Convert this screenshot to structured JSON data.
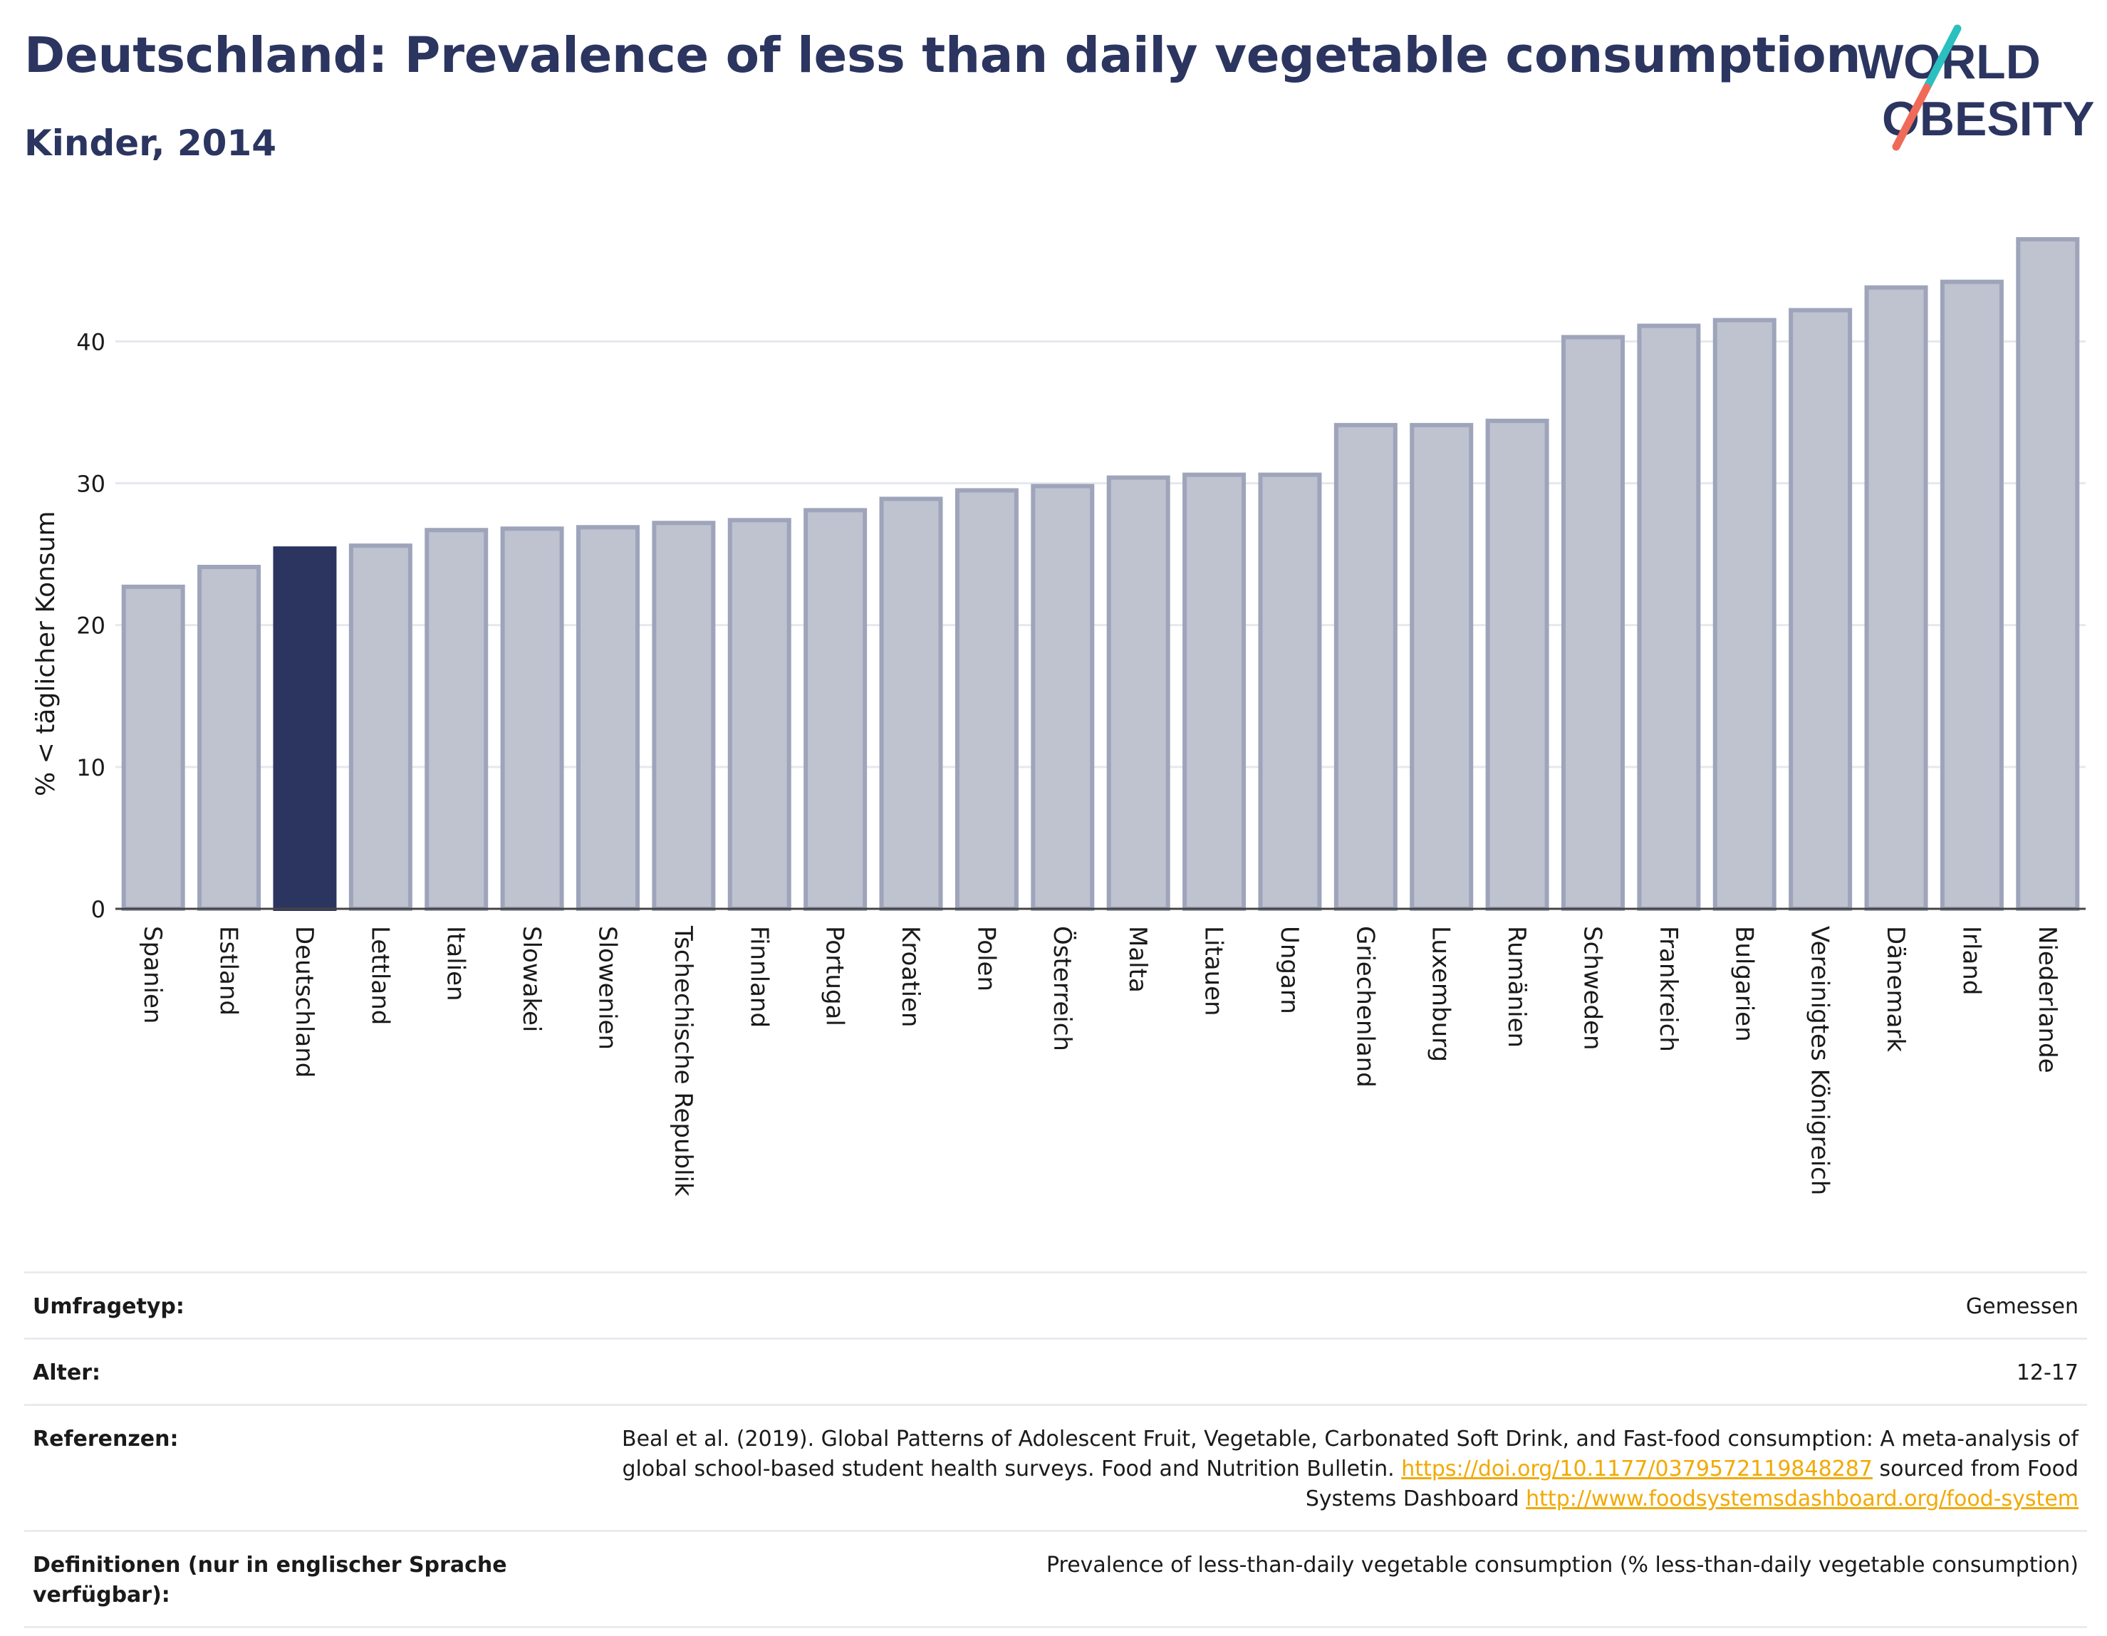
{
  "header": {
    "title": "Deutschland: Prevalence of less than daily vegetable consumption",
    "subtitle": "Kinder, 2014"
  },
  "logo": {
    "line1": "WORLD",
    "line2": "OBESITY"
  },
  "colors": {
    "highlight": "#2b3560",
    "bar_fill": "#bfc2cf",
    "bar_stroke": "#9ea4ba",
    "grid": "#e6e8ee",
    "logo_slash_teal": "#2bbfbf",
    "logo_slash_coral": "#ef6b57"
  },
  "chart_data": {
    "type": "bar",
    "title": "Deutschland: Prevalence of less than daily vegetable consumption",
    "subtitle": "Kinder, 2014",
    "xlabel": "",
    "ylabel": "% < täglicher Konsum",
    "ylim": [
      0,
      48
    ],
    "yticks": [
      0,
      10,
      20,
      30,
      40
    ],
    "grid": true,
    "highlight_category": "Deutschland",
    "categories": [
      "Spanien",
      "Estland",
      "Deutschland",
      "Lettland",
      "Italien",
      "Slowakei",
      "Slowenien",
      "Tschechische Republik",
      "Finnland",
      "Portugal",
      "Kroatien",
      "Polen",
      "Österreich",
      "Malta",
      "Litauen",
      "Ungarn",
      "Griechenland",
      "Luxemburg",
      "Rumänien",
      "Schweden",
      "Frankreich",
      "Bulgarien",
      "Vereinigtes Königreich",
      "Dänemark",
      "Irland",
      "Niederlande"
    ],
    "values": [
      22.7,
      24.1,
      25.4,
      25.6,
      26.7,
      26.8,
      26.9,
      27.2,
      27.4,
      28.1,
      28.9,
      29.5,
      29.8,
      30.4,
      30.6,
      30.6,
      34.1,
      34.1,
      34.4,
      40.3,
      41.1,
      41.5,
      42.2,
      43.8,
      44.2,
      47.2
    ]
  },
  "meta": {
    "rows": [
      {
        "label": "Umfragetyp:",
        "value": "Gemessen"
      },
      {
        "label": "Alter:",
        "value": "12-17"
      },
      {
        "label": "Referenzen:",
        "text1": "Beal et al. (2019). Global Patterns of Adolescent Fruit, Vegetable, Carbonated Soft Drink, and Fast-food consumption: A meta-analysis of global school-based student health surveys. Food and Nutrition Bulletin.",
        "link1": "https://doi.org/10.1177/0379572119848287",
        "text2": "sourced from Food Systems Dashboard",
        "link2": "http://www.foodsystemsdashboard.org/food-system"
      },
      {
        "label": "Definitionen (nur in englischer Sprache verfügbar):",
        "value": "Prevalence of less-than-daily vegetable consumption (% less-than-daily vegetable consumption)"
      }
    ]
  }
}
